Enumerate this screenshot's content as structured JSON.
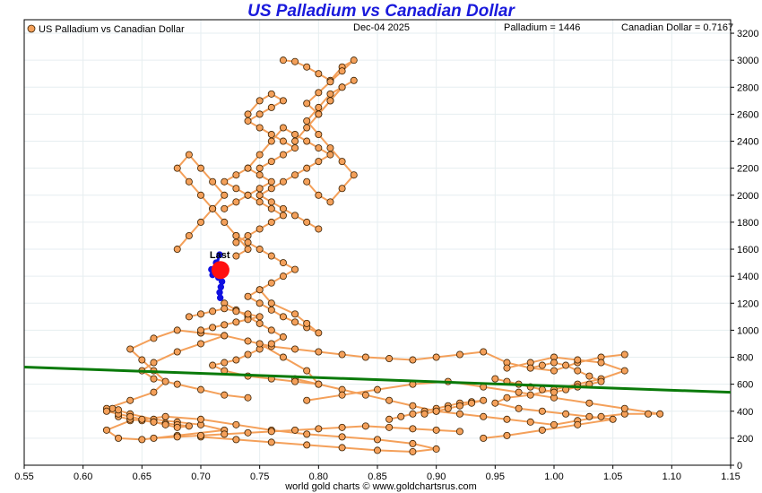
{
  "chart_data": {
    "type": "scatter",
    "title": "US Palladium vs Canadian Dollar",
    "date_label": "Dec-04  2025",
    "legend_label": "US Palladium vs Canadian Dollar",
    "palladium_readout": "Palladium = 1446",
    "cad_readout": "Canadian Dollar = 0.7167",
    "last_label": "Last",
    "footer": "world gold charts © www.goldchartsrus.com",
    "xlim": [
      0.55,
      1.15
    ],
    "ylim": [
      0,
      3300
    ],
    "x_ticks": [
      "0.55",
      "0.60",
      "0.65",
      "0.70",
      "0.75",
      "0.80",
      "0.85",
      "0.90",
      "0.95",
      "1.00",
      "1.05",
      "1.10",
      "1.15"
    ],
    "y_ticks": [
      "0",
      "200",
      "400",
      "600",
      "800",
      "1000",
      "1200",
      "1400",
      "1600",
      "1800",
      "2000",
      "2200",
      "2400",
      "2600",
      "2800",
      "3000",
      "3200"
    ],
    "grid": true,
    "legend_position": "top-left",
    "colors": {
      "points": "#f4a05a",
      "point_edge": "#3a2000",
      "path": "#f4a05a",
      "trend": "#0a7a0a",
      "recent": "#1010e0",
      "last": "#ff1010",
      "title": "#1a1adc"
    },
    "trend_line": {
      "x": [
        0.55,
        1.15
      ],
      "y": [
        727,
        540
      ]
    },
    "last_point": {
      "x": 0.7167,
      "y": 1446
    },
    "recent_path": {
      "x": [
        0.7165,
        0.716,
        0.717,
        0.718,
        0.715,
        0.71,
        0.709,
        0.713,
        0.716,
        0.714,
        0.7167
      ],
      "y": [
        1240,
        1280,
        1320,
        1360,
        1390,
        1410,
        1450,
        1500,
        1560,
        1480,
        1446
      ]
    },
    "series": [
      {
        "x": [
          0.625,
          0.64,
          0.66,
          0.68,
          0.7,
          0.72,
          0.68,
          0.65,
          0.63,
          0.62,
          0.64,
          0.67,
          0.7,
          0.73,
          0.76,
          0.79,
          0.82,
          0.85,
          0.88,
          0.9,
          0.88,
          0.85,
          0.82,
          0.79,
          0.76,
          0.73,
          0.7
        ],
        "y": [
          420,
          380,
          340,
          320,
          300,
          260,
          220,
          190,
          200,
          260,
          330,
          360,
          340,
          300,
          260,
          230,
          210,
          190,
          160,
          120,
          100,
          110,
          130,
          150,
          170,
          190,
          210
        ]
      },
      {
        "x": [
          0.62,
          0.64,
          0.66,
          0.67,
          0.66,
          0.65,
          0.64,
          0.66,
          0.68,
          0.7,
          0.72,
          0.7,
          0.68,
          0.66,
          0.65,
          0.66,
          0.68,
          0.7,
          0.72,
          0.74
        ],
        "y": [
          420,
          480,
          540,
          620,
          700,
          780,
          860,
          940,
          1000,
          980,
          960,
          900,
          840,
          760,
          700,
          640,
          600,
          560,
          520,
          500
        ]
      },
      {
        "x": [
          0.7,
          0.72,
          0.74,
          0.76,
          0.78,
          0.8,
          0.82,
          0.84,
          0.86,
          0.88,
          0.9,
          0.92,
          0.94,
          0.96,
          0.98,
          1.0,
          1.02,
          1.04,
          1.06
        ],
        "y": [
          980,
          960,
          920,
          880,
          860,
          840,
          820,
          800,
          790,
          780,
          800,
          820,
          840,
          760,
          720,
          700,
          760,
          800,
          820
        ]
      },
      {
        "x": [
          0.78,
          0.8,
          0.82,
          0.84,
          0.86,
          0.88,
          0.9,
          0.92,
          0.94,
          0.96,
          0.98,
          1.0,
          1.02,
          1.04,
          1.06,
          1.08,
          1.09,
          1.06,
          1.03,
          1.0,
          0.97,
          0.94,
          0.91,
          0.88,
          0.85,
          0.82,
          0.79
        ],
        "y": [
          640,
          600,
          560,
          520,
          480,
          440,
          400,
          380,
          360,
          340,
          320,
          300,
          330,
          360,
          380,
          380,
          380,
          420,
          460,
          500,
          540,
          580,
          620,
          600,
          560,
          520,
          480
        ]
      },
      {
        "x": [
          0.96,
          0.98,
          1.0,
          1.02,
          1.04,
          1.06,
          1.04,
          1.02,
          1.0,
          0.98,
          0.96,
          0.95,
          0.97,
          0.99,
          1.01,
          1.03,
          1.05,
          1.02,
          0.99,
          0.96,
          0.94
        ],
        "y": [
          720,
          760,
          800,
          780,
          760,
          700,
          640,
          600,
          560,
          520,
          500,
          460,
          420,
          400,
          380,
          360,
          340,
          300,
          260,
          220,
          200
        ]
      },
      {
        "x": [
          0.72,
          0.73,
          0.74,
          0.75,
          0.76,
          0.77,
          0.76,
          0.75,
          0.74,
          0.73,
          0.72,
          0.71,
          0.72,
          0.74,
          0.76,
          0.78,
          0.8,
          0.79,
          0.77,
          0.75
        ],
        "y": [
          1200,
          1150,
          1100,
          1050,
          1000,
          950,
          900,
          860,
          820,
          780,
          760,
          740,
          700,
          660,
          640,
          620,
          600,
          700,
          800,
          900
        ]
      },
      {
        "x": [
          0.73,
          0.74,
          0.75,
          0.76,
          0.77,
          0.78,
          0.77,
          0.76,
          0.75,
          0.74,
          0.75,
          0.76,
          0.77,
          0.78,
          0.79,
          0.8,
          0.79,
          0.78,
          0.76,
          0.75
        ],
        "y": [
          1700,
          1650,
          1600,
          1550,
          1500,
          1450,
          1400,
          1350,
          1300,
          1250,
          1200,
          1150,
          1100,
          1060,
          1020,
          980,
          1050,
          1120,
          1200,
          1300
        ]
      },
      {
        "x": [
          0.72,
          0.73,
          0.74,
          0.75,
          0.76,
          0.75,
          0.74,
          0.73,
          0.72,
          0.73,
          0.74,
          0.75,
          0.76,
          0.77,
          0.76,
          0.75,
          0.74,
          0.73
        ],
        "y": [
          1900,
          1950,
          2000,
          2050,
          2100,
          2150,
          2200,
          2150,
          2100,
          2050,
          2000,
          1950,
          1900,
          1850,
          1800,
          1750,
          1700,
          1650
        ]
      },
      {
        "x": [
          0.68,
          0.69,
          0.7,
          0.71,
          0.72,
          0.71,
          0.7,
          0.69,
          0.68,
          0.69,
          0.7,
          0.71,
          0.72,
          0.73,
          0.74,
          0.73
        ],
        "y": [
          1600,
          1700,
          1800,
          1900,
          2000,
          2100,
          2200,
          2300,
          2200,
          2100,
          2000,
          1900,
          1800,
          1700,
          1600,
          1550
        ]
      },
      {
        "x": [
          0.74,
          0.75,
          0.76,
          0.77,
          0.78,
          0.79,
          0.8,
          0.81,
          0.8,
          0.79,
          0.78,
          0.77,
          0.76,
          0.75,
          0.76,
          0.77,
          0.78,
          0.79,
          0.8
        ],
        "y": [
          2200,
          2300,
          2400,
          2500,
          2450,
          2400,
          2350,
          2300,
          2250,
          2200,
          2150,
          2100,
          2050,
          2000,
          1950,
          1900,
          1850,
          1800,
          1750
        ]
      },
      {
        "x": [
          0.78,
          0.79,
          0.8,
          0.81,
          0.82,
          0.81,
          0.8,
          0.79,
          0.8,
          0.81,
          0.82,
          0.83,
          0.82,
          0.81,
          0.8,
          0.79
        ],
        "y": [
          2400,
          2500,
          2600,
          2700,
          2800,
          2750,
          2650,
          2550,
          2450,
          2350,
          2250,
          2150,
          2050,
          1950,
          2000,
          2100
        ]
      },
      {
        "x": [
          0.77,
          0.78,
          0.79,
          0.8,
          0.81,
          0.82,
          0.83,
          0.82,
          0.81,
          0.8,
          0.79,
          0.8,
          0.81,
          0.82,
          0.83
        ],
        "y": [
          3000,
          2990,
          2950,
          2900,
          2850,
          2950,
          3000,
          2920,
          2840,
          2760,
          2680,
          2600,
          2700,
          2800,
          2850
        ]
      },
      {
        "x": [
          0.74,
          0.75,
          0.76,
          0.77,
          0.76,
          0.75,
          0.74,
          0.75,
          0.76,
          0.77,
          0.78,
          0.77,
          0.76,
          0.75
        ],
        "y": [
          2600,
          2700,
          2750,
          2700,
          2650,
          2600,
          2550,
          2500,
          2450,
          2400,
          2350,
          2300,
          2250,
          2200
        ]
      },
      {
        "x": [
          0.63,
          0.64,
          0.65,
          0.66,
          0.67,
          0.68,
          0.69,
          0.68,
          0.67,
          0.66,
          0.65,
          0.64,
          0.63,
          0.62,
          0.63
        ],
        "y": [
          360,
          340,
          330,
          320,
          310,
          300,
          290,
          280,
          300,
          320,
          340,
          360,
          380,
          400,
          410
        ]
      },
      {
        "x": [
          0.86,
          0.87,
          0.88,
          0.89,
          0.9,
          0.91,
          0.92,
          0.93,
          0.94,
          0.93,
          0.92,
          0.91,
          0.9,
          0.89
        ],
        "y": [
          340,
          360,
          380,
          400,
          420,
          440,
          460,
          470,
          480,
          460,
          440,
          420,
          400,
          380
        ]
      },
      {
        "x": [
          0.66,
          0.68,
          0.7,
          0.72,
          0.74,
          0.76,
          0.78,
          0.8,
          0.82,
          0.84,
          0.86,
          0.88,
          0.9,
          0.92
        ],
        "y": [
          200,
          210,
          220,
          230,
          240,
          250,
          260,
          270,
          280,
          290,
          280,
          270,
          260,
          250
        ]
      },
      {
        "x": [
          0.95,
          0.96,
          0.97,
          0.98,
          0.99,
          1.0,
          1.01,
          1.02,
          1.03,
          1.04,
          1.03,
          1.02,
          1.01,
          1.0,
          0.99,
          0.98
        ],
        "y": [
          640,
          620,
          600,
          580,
          560,
          540,
          560,
          580,
          600,
          620,
          660,
          700,
          740,
          760,
          740,
          720
        ]
      },
      {
        "x": [
          0.7,
          0.71,
          0.72,
          0.73,
          0.74,
          0.75,
          0.74,
          0.73,
          0.72,
          0.71,
          0.7,
          0.69
        ],
        "y": [
          1000,
          1020,
          1040,
          1060,
          1080,
          1100,
          1120,
          1140,
          1160,
          1140,
          1120,
          1100
        ]
      }
    ]
  }
}
